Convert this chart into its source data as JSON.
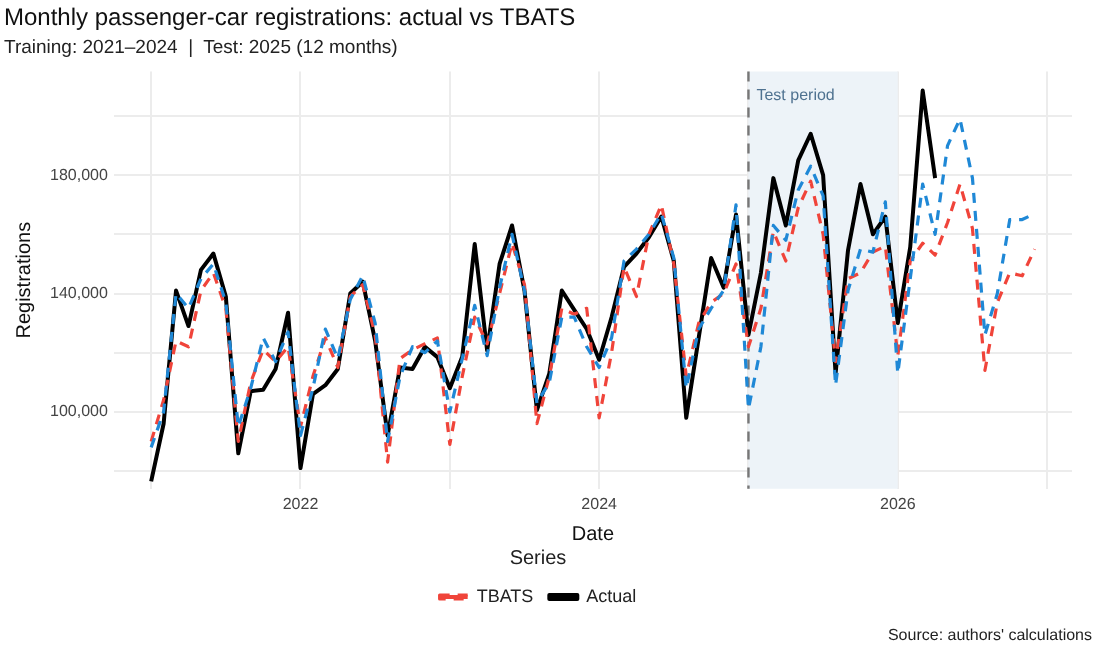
{
  "chart_data": {
    "type": "line",
    "title": "Monthly passenger-car registrations: actual vs TBATS",
    "subtitle": "Training: 2021–2024  |  Test: 2025 (12 months)",
    "xlabel": "Date",
    "ylabel": "Registrations",
    "legend_title": "Series",
    "annotations": [
      "Source: authors' calculations"
    ],
    "x": [
      "2021-01",
      "2021-02",
      "2021-03",
      "2021-04",
      "2021-05",
      "2021-06",
      "2021-07",
      "2021-08",
      "2021-09",
      "2021-10",
      "2021-11",
      "2021-12",
      "2022-01",
      "2022-02",
      "2022-03",
      "2022-04",
      "2022-05",
      "2022-06",
      "2022-07",
      "2022-08",
      "2022-09",
      "2022-10",
      "2022-11",
      "2022-12",
      "2023-01",
      "2023-02",
      "2023-03",
      "2023-04",
      "2023-05",
      "2023-06",
      "2023-07",
      "2023-08",
      "2023-09",
      "2023-10",
      "2023-11",
      "2023-12",
      "2024-01",
      "2024-02",
      "2024-03",
      "2024-04",
      "2024-05",
      "2024-06",
      "2024-07",
      "2024-08",
      "2024-09",
      "2024-10",
      "2024-11",
      "2024-12",
      "2025-01",
      "2025-02",
      "2025-03",
      "2025-04",
      "2025-05",
      "2025-06",
      "2025-07",
      "2025-08",
      "2025-09",
      "2025-10",
      "2025-11",
      "2025-12",
      "2026-01",
      "2026-02",
      "2026-03",
      "2026-04",
      "2026-05",
      "2026-06",
      "2026-07",
      "2026-08",
      "2026-09",
      "2026-10",
      "2026-11",
      "2026-12"
    ],
    "series": [
      {
        "color": "#1f88d6",
        "line_style": "dashed",
        "values": [
          88000,
          100000,
          140000,
          135000,
          145000,
          150000,
          137000,
          95000,
          108000,
          125000,
          117000,
          127000,
          92000,
          108000,
          128000,
          118000,
          138000,
          146000,
          130000,
          90000,
          112000,
          122000,
          120000,
          124000,
          100000,
          118000,
          136000,
          119000,
          142000,
          160000,
          141000,
          103000,
          110000,
          132000,
          132000,
          122000,
          115000,
          125000,
          151000,
          155000,
          160000,
          167000,
          152000,
          108000,
          128000,
          135000,
          141000,
          170000,
          101000,
          122000,
          163000,
          158000,
          175000,
          183000,
          173000,
          109000,
          141000,
          155000,
          154000,
          171000,
          113000,
          145000,
          177000,
          160000,
          190000,
          199000,
          179000,
          126000,
          140000,
          165000,
          165000,
          167000
        ]
      },
      {
        "name": "Actual",
        "color": "#000000",
        "line_style": "solid",
        "values": [
          76500,
          96000,
          141000,
          129000,
          148000,
          153500,
          139000,
          86000,
          107000,
          107500,
          114500,
          133500,
          81000,
          106000,
          109000,
          114500,
          140000,
          144000,
          124000,
          92000,
          115000,
          114500,
          122000,
          118500,
          108000,
          118600,
          156700,
          120700,
          150000,
          163000,
          141000,
          100600,
          113000,
          141000,
          134500,
          128000,
          117600,
          132000,
          149000,
          153500,
          159000,
          166000,
          151000,
          98000,
          125000,
          152000,
          142000,
          166700,
          126000,
          147000,
          179000,
          163000,
          185000,
          194000,
          180000,
          113000,
          154600,
          177000,
          160000,
          166000,
          130000,
          155700,
          208600,
          179000,
          null,
          null,
          null,
          null,
          null,
          null,
          null,
          null
        ]
      },
      {
        "name": "TBATS",
        "color": "#f0443a",
        "line_style": "dashed",
        "values": [
          90000,
          104000,
          124000,
          122000,
          141000,
          147000,
          135000,
          90000,
          110000,
          121000,
          117000,
          122000,
          95000,
          112000,
          125000,
          115000,
          139000,
          143000,
          126000,
          83000,
          118000,
          121000,
          123000,
          125000,
          89000,
          112000,
          132000,
          123000,
          140000,
          157000,
          143000,
          96000,
          112000,
          135000,
          133000,
          135000,
          98000,
          120000,
          149000,
          139000,
          160000,
          170000,
          150000,
          112000,
          130000,
          137000,
          140000,
          150000,
          122000,
          135000,
          161000,
          151000,
          169000,
          178000,
          160000,
          117000,
          145000,
          147000,
          154000,
          156000,
          119000,
          151000,
          157000,
          153000,
          164000,
          177000,
          162000,
          114000,
          137000,
          147000,
          146000,
          155000
        ]
      }
    ],
    "xlim": [
      "2020-10",
      "2027-03"
    ],
    "xticks": [
      {
        "value": "2021-01",
        "label": null
      },
      {
        "value": "2022-01",
        "label": "2022"
      },
      {
        "value": "2023-01",
        "label": null
      },
      {
        "value": "2024-01",
        "label": "2024"
      },
      {
        "value": "2025-01",
        "label": null
      },
      {
        "value": "2026-01",
        "label": "2026"
      },
      {
        "value": "2027-01",
        "label": null
      }
    ],
    "ylim": [
      74000,
      215000
    ],
    "yticks": [
      {
        "value": 80000,
        "label": null
      },
      {
        "value": 100000,
        "label": "100,000"
      },
      {
        "value": 120000,
        "label": null
      },
      {
        "value": 140000,
        "label": "140,000"
      },
      {
        "value": 160000,
        "label": null
      },
      {
        "value": 180000,
        "label": "180,000"
      },
      {
        "value": 200000,
        "label": null
      }
    ],
    "ref_lines": [
      {
        "axis": "x",
        "value": "2025-01",
        "color": "#777777",
        "line_style": "dashed"
      }
    ],
    "bands": [
      {
        "axis": "x",
        "from": "2025-01",
        "to": "2026-01",
        "label": "Test period",
        "color": "#edf3f8"
      }
    ],
    "grid": true,
    "legend": "bottom",
    "marker": "none"
  }
}
